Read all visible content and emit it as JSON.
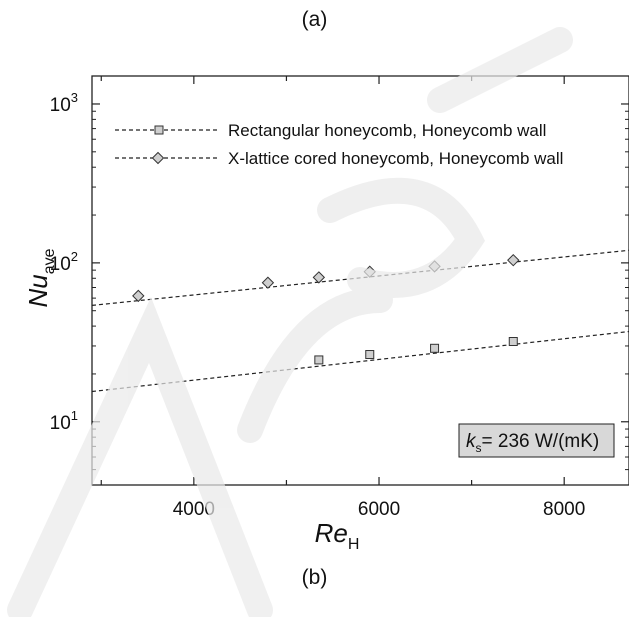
{
  "captions": {
    "top": "(a)",
    "bottom": "(b)"
  },
  "chart_data": {
    "type": "line",
    "title": "",
    "xlabel": {
      "main": "Re",
      "sub": "H"
    },
    "ylabel": {
      "main": "Nu",
      "sub": "ave"
    },
    "xlim": [
      2900,
      8700
    ],
    "ylim": [
      4,
      1500
    ],
    "y_scale": "log",
    "x_ticks": [
      4000,
      6000,
      8000
    ],
    "x_tick_labels": [
      "4000",
      "6000",
      "8000"
    ],
    "y_ticks": [
      {
        "value": 10,
        "base": "10",
        "exp": "1"
      },
      {
        "value": 100,
        "base": "10",
        "exp": "2"
      },
      {
        "value": 1000,
        "base": "10",
        "exp": "3"
      }
    ],
    "grid": false,
    "legend_position": "top-left",
    "series": [
      {
        "name": "Rectangular honeycomb, Honeycomb wall",
        "marker": "square",
        "line_style": "dashed",
        "x": [
          5350,
          5900,
          6600,
          7450
        ],
        "y": [
          24.5,
          26.5,
          29,
          32
        ],
        "fit": {
          "x": [
            2900,
            8700
          ],
          "y": [
            15.5,
            37
          ]
        }
      },
      {
        "name": "X-lattice cored honeycomb, Honeycomb wall",
        "marker": "diamond",
        "line_style": "dashed",
        "x": [
          3400,
          4800,
          5350,
          5900,
          6600,
          7450
        ],
        "y": [
          62,
          75,
          81,
          88,
          95,
          104
        ],
        "fit": {
          "x": [
            2900,
            8700
          ],
          "y": [
            54,
            120
          ]
        }
      }
    ],
    "annotation": {
      "main": "k",
      "sub": "s",
      "rest": "= 236 W/(mK)"
    }
  }
}
